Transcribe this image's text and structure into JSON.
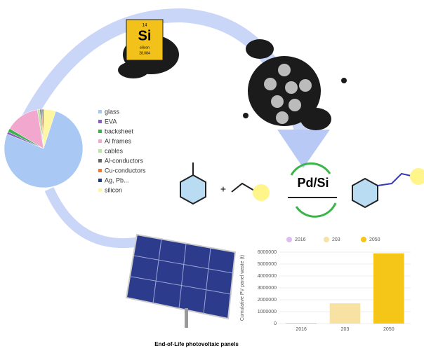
{
  "element_card": {
    "number": "14",
    "symbol": "Si",
    "name": "silicon",
    "mass": "28.084"
  },
  "reaction": {
    "plus": "+",
    "catalyst": "Pd/Si"
  },
  "caption": "End-of-Life photovoltaic panels",
  "chart_data": [
    {
      "type": "pie",
      "categories": [
        "glass",
        "EVA",
        "backsheet",
        "Al frames",
        "cables",
        "Al-conductors",
        "Cu-conductors",
        "Ag, Pb...",
        "silicon"
      ],
      "values": [
        76,
        1,
        1.5,
        14,
        1,
        0.5,
        0.5,
        0.5,
        5
      ],
      "colors": [
        "#a9c8f4",
        "#8a5cc7",
        "#3cb04a",
        "#f2a7cf",
        "#b9e6a2",
        "#666666",
        "#f07a2a",
        "#1f3f7a",
        "#fff6a0"
      ]
    },
    {
      "type": "bar",
      "y_label": "Cumulative PV panel waste (t)",
      "categories": [
        "2016",
        "203",
        "2050"
      ],
      "values": [
        50000,
        1700000,
        5900000
      ],
      "colors": [
        "#dcbdf0",
        "#f7e1a3",
        "#f5c518"
      ],
      "ylim": [
        0,
        6000000
      ],
      "yticks": [
        0,
        1000000,
        2000000,
        3000000,
        4000000,
        5000000,
        6000000
      ],
      "grid": true
    }
  ]
}
